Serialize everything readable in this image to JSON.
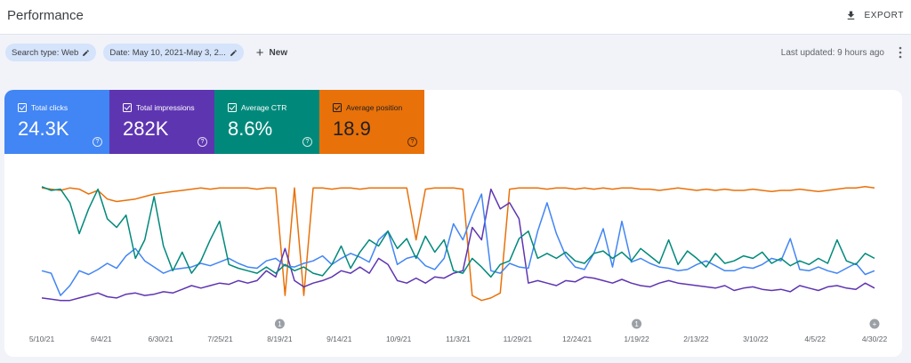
{
  "header": {
    "title": "Performance",
    "export_label": "EXPORT"
  },
  "filters": {
    "search_type": "Search type: Web",
    "date": "Date: May 10, 2021-May 3, 2...",
    "new_label": "New"
  },
  "last_updated": "Last updated: 9 hours ago",
  "metrics": [
    {
      "label": "Total clicks",
      "value": "24.3K",
      "color": "#4285f4"
    },
    {
      "label": "Total impressions",
      "value": "282K",
      "color": "#5e35b1"
    },
    {
      "label": "Average CTR",
      "value": "8.6%",
      "color": "#00897b"
    },
    {
      "label": "Average position",
      "value": "18.9",
      "color": "#e8710a"
    }
  ],
  "chart_data": {
    "type": "line",
    "x_ticks": [
      "5/10/21",
      "6/4/21",
      "6/30/21",
      "7/25/21",
      "8/19/21",
      "9/14/21",
      "10/9/21",
      "11/3/21",
      "11/29/21",
      "12/24/21",
      "1/19/22",
      "2/13/22",
      "3/10/22",
      "4/5/22",
      "4/30/22"
    ],
    "annotations": [
      {
        "x": "8/19/21",
        "label": "1"
      },
      {
        "x": "1/19/22",
        "label": "1"
      },
      {
        "x": "4/30/22",
        "label": "+"
      }
    ],
    "grid": false,
    "legend": "none",
    "series": [
      {
        "name": "Total clicks",
        "color": "#4285f4",
        "values": [
          0.3,
          0.28,
          0.1,
          0.18,
          0.3,
          0.27,
          0.31,
          0.36,
          0.32,
          0.42,
          0.48,
          0.38,
          0.33,
          0.28,
          0.31,
          0.32,
          0.33,
          0.36,
          0.34,
          0.37,
          0.4,
          0.36,
          0.33,
          0.32,
          0.38,
          0.4,
          0.34,
          0.33,
          0.36,
          0.38,
          0.42,
          0.35,
          0.4,
          0.44,
          0.41,
          0.37,
          0.55,
          0.62,
          0.35,
          0.4,
          0.42,
          0.34,
          0.31,
          0.4,
          0.68,
          0.55,
          0.75,
          0.92,
          0.3,
          0.28,
          0.36,
          0.33,
          0.32,
          0.62,
          0.85,
          0.6,
          0.42,
          0.33,
          0.31,
          0.44,
          0.64,
          0.33,
          0.7,
          0.37,
          0.4,
          0.36,
          0.33,
          0.32,
          0.3,
          0.31,
          0.35,
          0.38,
          0.34,
          0.3,
          0.3,
          0.33,
          0.32,
          0.35,
          0.4,
          0.38,
          0.56,
          0.31,
          0.3,
          0.33,
          0.3,
          0.28,
          0.32,
          0.36,
          0.27,
          0.3
        ]
      },
      {
        "name": "Total impressions",
        "color": "#5e35b1",
        "values": [
          0.08,
          0.07,
          0.06,
          0.06,
          0.08,
          0.1,
          0.12,
          0.09,
          0.08,
          0.11,
          0.12,
          0.1,
          0.11,
          0.13,
          0.12,
          0.15,
          0.18,
          0.16,
          0.18,
          0.2,
          0.19,
          0.22,
          0.2,
          0.22,
          0.3,
          0.25,
          0.48,
          0.22,
          0.17,
          0.2,
          0.22,
          0.25,
          0.3,
          0.28,
          0.33,
          0.28,
          0.4,
          0.35,
          0.22,
          0.2,
          0.24,
          0.2,
          0.25,
          0.24,
          0.28,
          0.3,
          0.65,
          0.55,
          0.96,
          0.8,
          0.85,
          0.72,
          0.2,
          0.22,
          0.2,
          0.18,
          0.22,
          0.21,
          0.25,
          0.24,
          0.22,
          0.2,
          0.23,
          0.2,
          0.18,
          0.17,
          0.2,
          0.22,
          0.2,
          0.19,
          0.18,
          0.17,
          0.16,
          0.18,
          0.14,
          0.16,
          0.17,
          0.15,
          0.14,
          0.15,
          0.13,
          0.18,
          0.16,
          0.14,
          0.17,
          0.18,
          0.16,
          0.15,
          0.2,
          0.16
        ]
      },
      {
        "name": "Average CTR",
        "color": "#00897b",
        "values": [
          0.98,
          0.95,
          0.96,
          0.85,
          0.6,
          0.8,
          0.96,
          0.72,
          0.65,
          0.75,
          0.4,
          0.55,
          0.9,
          0.5,
          0.3,
          0.45,
          0.28,
          0.38,
          0.55,
          0.7,
          0.35,
          0.32,
          0.3,
          0.28,
          0.33,
          0.28,
          0.35,
          0.3,
          0.33,
          0.28,
          0.26,
          0.35,
          0.5,
          0.32,
          0.45,
          0.55,
          0.5,
          0.62,
          0.48,
          0.56,
          0.4,
          0.58,
          0.45,
          0.55,
          0.3,
          0.28,
          0.4,
          0.33,
          0.25,
          0.35,
          0.38,
          0.56,
          0.62,
          0.4,
          0.44,
          0.4,
          0.45,
          0.38,
          0.36,
          0.44,
          0.46,
          0.4,
          0.45,
          0.38,
          0.48,
          0.42,
          0.36,
          0.55,
          0.35,
          0.46,
          0.4,
          0.33,
          0.44,
          0.36,
          0.38,
          0.42,
          0.4,
          0.45,
          0.36,
          0.4,
          0.34,
          0.38,
          0.35,
          0.4,
          0.36,
          0.55,
          0.38,
          0.35,
          0.44,
          0.4
        ]
      },
      {
        "name": "Average position",
        "color": "#e8710a",
        "values": [
          0.97,
          0.96,
          0.95,
          0.97,
          0.96,
          0.92,
          0.95,
          0.88,
          0.86,
          0.87,
          0.88,
          0.9,
          0.92,
          0.93,
          0.94,
          0.95,
          0.96,
          0.97,
          0.96,
          0.97,
          0.97,
          0.97,
          0.97,
          0.96,
          0.97,
          0.97,
          0.1,
          0.97,
          0.1,
          0.97,
          0.97,
          0.96,
          0.97,
          0.97,
          0.96,
          0.97,
          0.97,
          0.97,
          0.97,
          0.97,
          0.55,
          0.96,
          0.97,
          0.97,
          0.97,
          0.96,
          0.1,
          0.06,
          0.08,
          0.12,
          0.96,
          0.97,
          0.97,
          0.97,
          0.96,
          0.97,
          0.97,
          0.96,
          0.97,
          0.96,
          0.97,
          0.96,
          0.97,
          0.97,
          0.96,
          0.96,
          0.95,
          0.96,
          0.97,
          0.96,
          0.95,
          0.96,
          0.95,
          0.96,
          0.95,
          0.95,
          0.96,
          0.95,
          0.94,
          0.95,
          0.95,
          0.96,
          0.95,
          0.94,
          0.95,
          0.96,
          0.97,
          0.97,
          0.98,
          0.97
        ]
      }
    ]
  }
}
